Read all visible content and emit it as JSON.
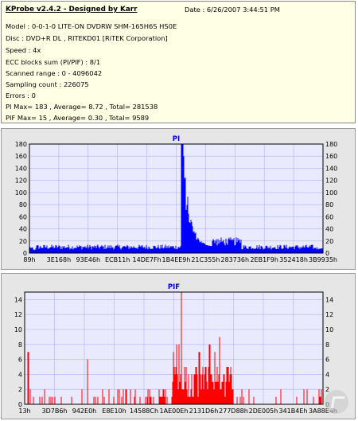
{
  "info": {
    "title": "KProbe v2.4.2 - Designed by Karr",
    "date": "Date : 6/26/2007 3:44:51 PM",
    "model": "Model : 0-0-1-0 LITE-ON DVDRW SHM-165H6S HS0E",
    "disc": "Disc : DVD+R DL , RITEKD01 [RiTEK Corporation]",
    "speed": "Speed : 4x",
    "ecc": "ECC blocks sum (PI/PIF) : 8/1",
    "range": "Scanned range : 0 - 4096042",
    "sampling": "Sampling count : 226075",
    "errors": "Errors : 0",
    "pi_stats": "PI Max= 183 , Average= 8.72 , Total= 281538",
    "pif_stats": "PIF Max= 15 , Average= 0.30 , Total= 9589"
  },
  "colors": {
    "pi": "#0000ff",
    "pif": "#ff0000",
    "plot_bg": "#eaeaff",
    "grid": "#b0b0ff"
  },
  "chart_data": [
    {
      "type": "area",
      "title": "PI",
      "ylim": [
        0,
        180
      ],
      "yticks": [
        0,
        20,
        40,
        60,
        80,
        100,
        120,
        140,
        160,
        180
      ],
      "xticks": [
        "89h",
        "3E168h",
        "93E46h",
        "ECB11h",
        "14DE7Fh",
        "1B4EE9h",
        "21C355h",
        "283736h",
        "2EB1F9h",
        "352418h",
        "3B9935h"
      ],
      "max": 183,
      "average": 8.72,
      "grid": true
    },
    {
      "type": "bar",
      "title": "PIF",
      "ylim": [
        0,
        15
      ],
      "yticks": [
        0,
        2,
        4,
        6,
        8,
        10,
        12,
        14
      ],
      "xticks": [
        "13h",
        "3D7B6h",
        "942E0h",
        "E8E10h",
        "14588Ch",
        "1AE00Eh",
        "2131D6h",
        "277D88h",
        "2DE005h",
        "341B4Eh",
        "3A88E4h"
      ],
      "max": 15,
      "average": 0.3,
      "grid": true
    }
  ]
}
